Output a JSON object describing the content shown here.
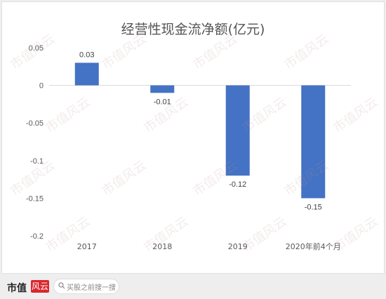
{
  "chart_data": {
    "type": "bar",
    "title": "经营性现金流净额(亿元)",
    "categories": [
      "2017",
      "2018",
      "2019",
      "2020年前4个月"
    ],
    "values": [
      0.03,
      -0.01,
      -0.12,
      -0.15
    ],
    "data_labels": [
      "0.03",
      "-0.01",
      "-0.12",
      "-0.15"
    ],
    "ylim": [
      -0.2,
      0.05
    ],
    "y_ticks": [
      0.05,
      0,
      -0.05,
      -0.1,
      -0.15,
      -0.2
    ],
    "y_tick_labels": [
      "0.05",
      "0",
      "-0.05",
      "-0.1",
      "-0.15",
      "-0.2"
    ],
    "bar_color": "#4472c4",
    "grid": false,
    "legend": "none"
  },
  "watermark": "市值风云",
  "footer": {
    "logo_text": "市值",
    "logo_mark": "风云",
    "search_placeholder": "买股之前搜一搜"
  }
}
